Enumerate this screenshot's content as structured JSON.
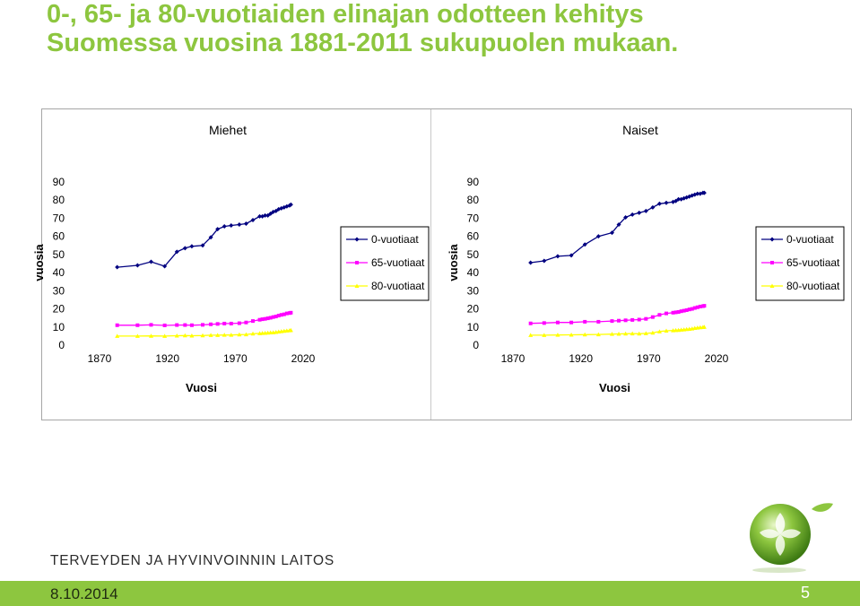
{
  "page_title": "0-, 65- ja 80-vuotiaiden elinajan odotteen kehitys Suomessa vuosina 1881-2011 sukupuolen mukaan.",
  "chart_data": [
    {
      "type": "line",
      "title": "Miehet",
      "xlabel": "Vuosi",
      "ylabel": "vuosia",
      "xlim": [
        1870,
        2020
      ],
      "ylim": [
        0,
        90
      ],
      "xticks": [
        "1870",
        "1920",
        "1970",
        "2020"
      ],
      "yticks": [
        "0",
        "10",
        "20",
        "30",
        "40",
        "50",
        "60",
        "70",
        "80",
        "90"
      ],
      "legend_position": "right",
      "series": [
        {
          "name": "0-vuotiaat",
          "color": "#000080",
          "marker": "diamond",
          "x": [
            1883,
            1898,
            1908,
            1918,
            1927,
            1933,
            1938,
            1946,
            1952,
            1957,
            1962,
            1967,
            1973,
            1978,
            1983,
            1988,
            1990,
            1992,
            1994,
            1996,
            1998,
            2000,
            2002,
            2004,
            2006,
            2008,
            2010,
            2011
          ],
          "y": [
            42.5,
            43.5,
            45.5,
            43,
            51,
            53,
            54,
            54.5,
            59,
            63.5,
            65,
            65.5,
            66,
            66.5,
            68.5,
            70.5,
            70.5,
            71,
            71,
            72,
            73,
            73.5,
            74.5,
            75,
            75.5,
            76,
            76.5,
            77
          ]
        },
        {
          "name": "65-vuotiaat",
          "color": "#ff00ff",
          "marker": "square",
          "x": [
            1883,
            1898,
            1908,
            1918,
            1927,
            1933,
            1938,
            1946,
            1952,
            1957,
            1962,
            1967,
            1973,
            1978,
            1983,
            1988,
            1990,
            1992,
            1994,
            1996,
            1998,
            2000,
            2002,
            2004,
            2006,
            2008,
            2010,
            2011
          ],
          "y": [
            10.5,
            10.5,
            10.7,
            10.4,
            10.6,
            10.6,
            10.5,
            10.7,
            11,
            11.2,
            11.4,
            11.4,
            11.6,
            12,
            12.8,
            13.5,
            13.8,
            14,
            14.3,
            14.6,
            15,
            15.3,
            15.8,
            16.2,
            16.5,
            17,
            17.2,
            17.4
          ]
        },
        {
          "name": "80-vuotiaat",
          "color": "#ffff00",
          "marker": "triangle",
          "x": [
            1883,
            1898,
            1908,
            1918,
            1927,
            1933,
            1938,
            1946,
            1952,
            1957,
            1962,
            1967,
            1973,
            1978,
            1983,
            1988,
            1990,
            1992,
            1994,
            1996,
            1998,
            2000,
            2002,
            2004,
            2006,
            2008,
            2010,
            2011
          ],
          "y": [
            4.5,
            4.5,
            4.6,
            4.5,
            4.7,
            4.8,
            4.7,
            4.8,
            5,
            5,
            5.1,
            5.1,
            5.3,
            5.4,
            5.8,
            6,
            6.1,
            6.2,
            6.3,
            6.4,
            6.5,
            6.7,
            6.9,
            7.1,
            7.3,
            7.5,
            7.6,
            7.7
          ]
        }
      ]
    },
    {
      "type": "line",
      "title": "Naiset",
      "xlabel": "Vuosi",
      "ylabel": "vuosia",
      "xlim": [
        1870,
        2020
      ],
      "ylim": [
        0,
        90
      ],
      "xticks": [
        "1870",
        "1920",
        "1970",
        "2020"
      ],
      "yticks": [
        "0",
        "10",
        "20",
        "30",
        "40",
        "50",
        "60",
        "70",
        "80",
        "90"
      ],
      "legend_position": "right",
      "series": [
        {
          "name": "0-vuotiaat",
          "color": "#000080",
          "marker": "diamond",
          "x": [
            1883,
            1893,
            1903,
            1913,
            1923,
            1933,
            1943,
            1948,
            1953,
            1958,
            1963,
            1968,
            1973,
            1978,
            1983,
            1988,
            1990,
            1992,
            1994,
            1996,
            1998,
            2000,
            2002,
            2004,
            2006,
            2008,
            2010,
            2011
          ],
          "y": [
            45,
            46,
            48.5,
            49,
            55,
            59.5,
            61.5,
            66,
            70,
            71.5,
            72.5,
            73.5,
            75.5,
            77.5,
            78,
            78.5,
            79,
            80,
            80,
            80.5,
            81,
            81.5,
            82,
            82.5,
            83,
            83,
            83.5,
            83.5
          ]
        },
        {
          "name": "65-vuotiaat",
          "color": "#ff00ff",
          "marker": "square",
          "x": [
            1883,
            1893,
            1903,
            1913,
            1923,
            1933,
            1943,
            1948,
            1953,
            1958,
            1963,
            1968,
            1973,
            1978,
            1983,
            1988,
            1990,
            1992,
            1994,
            1996,
            1998,
            2000,
            2002,
            2004,
            2006,
            2008,
            2010,
            2011
          ],
          "y": [
            11.5,
            11.7,
            12,
            12,
            12.4,
            12.4,
            12.8,
            13,
            13.2,
            13.4,
            13.6,
            14,
            15,
            16.2,
            17,
            17.4,
            17.6,
            17.8,
            18.2,
            18.5,
            18.8,
            19.2,
            19.5,
            20,
            20.4,
            20.8,
            21,
            21.2
          ]
        },
        {
          "name": "80-vuotiaat",
          "color": "#ffff00",
          "marker": "triangle",
          "x": [
            1883,
            1893,
            1903,
            1913,
            1923,
            1933,
            1943,
            1948,
            1953,
            1958,
            1963,
            1968,
            1973,
            1978,
            1983,
            1988,
            1990,
            1992,
            1994,
            1996,
            1998,
            2000,
            2002,
            2004,
            2006,
            2008,
            2010,
            2011
          ],
          "y": [
            5,
            5,
            5.1,
            5.2,
            5.3,
            5.4,
            5.6,
            5.7,
            5.8,
            5.9,
            5.8,
            6,
            6.3,
            7,
            7.4,
            7.6,
            7.7,
            7.8,
            8,
            8.1,
            8.3,
            8.4,
            8.6,
            8.9,
            9.1,
            9.3,
            9.4,
            9.5
          ]
        }
      ]
    }
  ],
  "footer": {
    "organization": "TERVEYDEN JA HYVINVOINNIN LAITOS",
    "date": "8.10.2014",
    "page_number": "5"
  }
}
